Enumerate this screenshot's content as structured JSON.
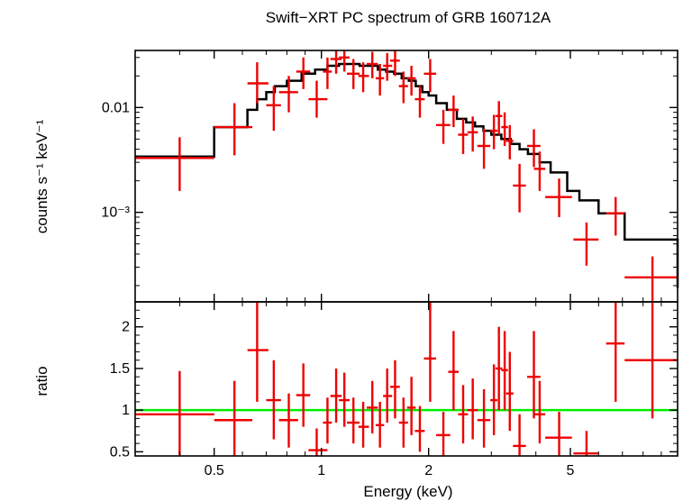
{
  "chart_data": {
    "type": "scatter",
    "title": "Swift−XRT PC spectrum of GRB 160712A",
    "xlabel": "Energy (keV)",
    "x_scale": "log",
    "xlim": [
      0.3,
      10
    ],
    "x_ticks": [
      {
        "value": 0.5,
        "label": "0.5"
      },
      {
        "value": 1,
        "label": "1"
      },
      {
        "value": 2,
        "label": "2"
      },
      {
        "value": 5,
        "label": "5"
      }
    ],
    "panels": [
      {
        "name": "spectrum",
        "ylabel": "counts s⁻¹ keV⁻¹",
        "y_scale": "log",
        "ylim": [
          0.00014,
          0.035
        ],
        "y_ticks": [
          {
            "value": 0.01,
            "label": "0.01"
          },
          {
            "value": 0.001,
            "label": "10⁻³"
          }
        ],
        "data_color": "#ee0000",
        "model_color": "#000000",
        "data": [
          {
            "x": 0.4,
            "xlo": 0.3,
            "xhi": 0.5,
            "y": 0.0033,
            "ylo": 0.0016,
            "yhi": 0.0052
          },
          {
            "x": 0.57,
            "xlo": 0.5,
            "xhi": 0.64,
            "y": 0.0065,
            "ylo": 0.0035,
            "yhi": 0.011
          },
          {
            "x": 0.66,
            "xlo": 0.62,
            "xhi": 0.71,
            "y": 0.017,
            "ylo": 0.011,
            "yhi": 0.027
          },
          {
            "x": 0.735,
            "xlo": 0.7,
            "xhi": 0.77,
            "y": 0.0105,
            "ylo": 0.006,
            "yhi": 0.016
          },
          {
            "x": 0.81,
            "xlo": 0.76,
            "xhi": 0.86,
            "y": 0.014,
            "ylo": 0.009,
            "yhi": 0.02
          },
          {
            "x": 0.89,
            "xlo": 0.85,
            "xhi": 0.93,
            "y": 0.022,
            "ylo": 0.015,
            "yhi": 0.03
          },
          {
            "x": 0.97,
            "xlo": 0.92,
            "xhi": 1.04,
            "y": 0.012,
            "ylo": 0.008,
            "yhi": 0.018
          },
          {
            "x": 1.04,
            "xlo": 1.01,
            "xhi": 1.07,
            "y": 0.022,
            "ylo": 0.015,
            "yhi": 0.03
          },
          {
            "x": 1.1,
            "xlo": 1.06,
            "xhi": 1.14,
            "y": 0.029,
            "ylo": 0.021,
            "yhi": 0.035
          },
          {
            "x": 1.16,
            "xlo": 1.12,
            "xhi": 1.2,
            "y": 0.03,
            "ylo": 0.022,
            "yhi": 0.035
          },
          {
            "x": 1.23,
            "xlo": 1.18,
            "xhi": 1.28,
            "y": 0.021,
            "ylo": 0.015,
            "yhi": 0.029
          },
          {
            "x": 1.31,
            "xlo": 1.27,
            "xhi": 1.36,
            "y": 0.02,
            "ylo": 0.014,
            "yhi": 0.027
          },
          {
            "x": 1.39,
            "xlo": 1.34,
            "xhi": 1.44,
            "y": 0.026,
            "ylo": 0.019,
            "yhi": 0.034
          },
          {
            "x": 1.46,
            "xlo": 1.42,
            "xhi": 1.5,
            "y": 0.019,
            "ylo": 0.013,
            "yhi": 0.026
          },
          {
            "x": 1.53,
            "xlo": 1.49,
            "xhi": 1.58,
            "y": 0.025,
            "ylo": 0.018,
            "yhi": 0.033
          },
          {
            "x": 1.61,
            "xlo": 1.56,
            "xhi": 1.66,
            "y": 0.028,
            "ylo": 0.02,
            "yhi": 0.035
          },
          {
            "x": 1.7,
            "xlo": 1.65,
            "xhi": 1.75,
            "y": 0.016,
            "ylo": 0.011,
            "yhi": 0.022
          },
          {
            "x": 1.79,
            "xlo": 1.74,
            "xhi": 1.84,
            "y": 0.019,
            "ylo": 0.013,
            "yhi": 0.025
          },
          {
            "x": 1.89,
            "xlo": 1.83,
            "xhi": 1.95,
            "y": 0.012,
            "ylo": 0.008,
            "yhi": 0.016
          },
          {
            "x": 2.02,
            "xlo": 1.94,
            "xhi": 2.1,
            "y": 0.021,
            "ylo": 0.014,
            "yhi": 0.029
          },
          {
            "x": 2.2,
            "xlo": 2.1,
            "xhi": 2.3,
            "y": 0.0068,
            "ylo": 0.0045,
            "yhi": 0.0095
          },
          {
            "x": 2.35,
            "xlo": 2.27,
            "xhi": 2.43,
            "y": 0.0095,
            "ylo": 0.0065,
            "yhi": 0.013
          },
          {
            "x": 2.5,
            "xlo": 2.42,
            "xhi": 2.58,
            "y": 0.0055,
            "ylo": 0.0036,
            "yhi": 0.0078
          },
          {
            "x": 2.66,
            "xlo": 2.57,
            "xhi": 2.75,
            "y": 0.0058,
            "ylo": 0.0038,
            "yhi": 0.0082
          },
          {
            "x": 2.86,
            "xlo": 2.74,
            "xhi": 2.98,
            "y": 0.0043,
            "ylo": 0.0026,
            "yhi": 0.0063
          },
          {
            "x": 3.05,
            "xlo": 2.98,
            "xhi": 3.12,
            "y": 0.006,
            "ylo": 0.004,
            "yhi": 0.0085
          },
          {
            "x": 3.15,
            "xlo": 3.08,
            "xhi": 3.22,
            "y": 0.0083,
            "ylo": 0.0055,
            "yhi": 0.0115
          },
          {
            "x": 3.27,
            "xlo": 3.2,
            "xhi": 3.34,
            "y": 0.0065,
            "ylo": 0.0043,
            "yhi": 0.009
          },
          {
            "x": 3.38,
            "xlo": 3.3,
            "xhi": 3.46,
            "y": 0.0048,
            "ylo": 0.0032,
            "yhi": 0.0068
          },
          {
            "x": 3.6,
            "xlo": 3.45,
            "xhi": 3.75,
            "y": 0.0018,
            "ylo": 0.001,
            "yhi": 0.0029
          },
          {
            "x": 3.95,
            "xlo": 3.78,
            "xhi": 4.12,
            "y": 0.0043,
            "ylo": 0.0027,
            "yhi": 0.0062
          },
          {
            "x": 4.1,
            "xlo": 3.95,
            "xhi": 4.25,
            "y": 0.0026,
            "ylo": 0.0016,
            "yhi": 0.0038
          },
          {
            "x": 4.65,
            "xlo": 4.25,
            "xhi": 5.05,
            "y": 0.0014,
            "ylo": 0.0009,
            "yhi": 0.0021
          },
          {
            "x": 5.55,
            "xlo": 5.1,
            "xhi": 6.0,
            "y": 0.00055,
            "ylo": 0.00031,
            "yhi": 0.0008
          },
          {
            "x": 6.7,
            "xlo": 6.3,
            "xhi": 7.1,
            "y": 0.00098,
            "ylo": 0.0006,
            "yhi": 0.0014
          },
          {
            "x": 8.5,
            "xlo": 7.1,
            "xhi": 10.0,
            "y": 0.00024,
            "ylo": 0.00014,
            "yhi": 0.00038
          }
        ],
        "model_step": {
          "edges": [
            0.3,
            0.5,
            0.62,
            0.66,
            0.7,
            0.74,
            0.8,
            0.88,
            0.96,
            1.04,
            1.12,
            1.2,
            1.28,
            1.36,
            1.44,
            1.52,
            1.6,
            1.68,
            1.76,
            1.84,
            1.92,
            2.0,
            2.1,
            2.25,
            2.4,
            2.55,
            2.7,
            2.85,
            3.0,
            3.2,
            3.4,
            3.6,
            3.8,
            4.1,
            4.4,
            4.9,
            5.3,
            6.0,
            7.1,
            10.0
          ],
          "values": [
            0.0034,
            0.0065,
            0.0095,
            0.012,
            0.014,
            0.016,
            0.018,
            0.021,
            0.023,
            0.025,
            0.026,
            0.026,
            0.025,
            0.025,
            0.023,
            0.022,
            0.021,
            0.019,
            0.018,
            0.016,
            0.014,
            0.013,
            0.011,
            0.0095,
            0.0078,
            0.0072,
            0.0066,
            0.006,
            0.0055,
            0.005,
            0.0045,
            0.004,
            0.0036,
            0.003,
            0.0024,
            0.0016,
            0.0013,
            0.00098,
            0.00055,
            0.00019
          ]
        }
      },
      {
        "name": "ratio",
        "ylabel": "ratio",
        "y_scale": "linear",
        "ylim": [
          0.45,
          2.3
        ],
        "y_ticks": [
          {
            "value": 0.5,
            "label": "0.5"
          },
          {
            "value": 1,
            "label": "1"
          },
          {
            "value": 1.5,
            "label": "1.5"
          },
          {
            "value": 2,
            "label": "2"
          }
        ],
        "reference_line": {
          "value": 1.0,
          "color": "#00ee00"
        },
        "data_color": "#ee0000",
        "data": [
          {
            "x": 0.4,
            "xlo": 0.3,
            "xhi": 0.5,
            "y": 0.95,
            "ylo": 0.45,
            "yhi": 1.47
          },
          {
            "x": 0.57,
            "xlo": 0.5,
            "xhi": 0.64,
            "y": 0.88,
            "ylo": 0.45,
            "yhi": 1.35
          },
          {
            "x": 0.66,
            "xlo": 0.62,
            "xhi": 0.71,
            "y": 1.72,
            "ylo": 1.1,
            "yhi": 2.3
          },
          {
            "x": 0.735,
            "xlo": 0.7,
            "xhi": 0.77,
            "y": 1.12,
            "ylo": 0.65,
            "yhi": 1.6
          },
          {
            "x": 0.81,
            "xlo": 0.76,
            "xhi": 0.86,
            "y": 0.88,
            "ylo": 0.55,
            "yhi": 1.2
          },
          {
            "x": 0.89,
            "xlo": 0.85,
            "xhi": 0.93,
            "y": 1.18,
            "ylo": 0.8,
            "yhi": 1.56
          },
          {
            "x": 0.97,
            "xlo": 0.92,
            "xhi": 1.04,
            "y": 0.52,
            "ylo": 0.45,
            "yhi": 0.78
          },
          {
            "x": 1.04,
            "xlo": 1.01,
            "xhi": 1.07,
            "y": 0.85,
            "ylo": 0.6,
            "yhi": 1.15
          },
          {
            "x": 1.1,
            "xlo": 1.06,
            "xhi": 1.14,
            "y": 1.17,
            "ylo": 0.85,
            "yhi": 1.5
          },
          {
            "x": 1.16,
            "xlo": 1.12,
            "xhi": 1.2,
            "y": 1.12,
            "ylo": 0.8,
            "yhi": 1.45
          },
          {
            "x": 1.23,
            "xlo": 1.18,
            "xhi": 1.28,
            "y": 0.85,
            "ylo": 0.6,
            "yhi": 1.15
          },
          {
            "x": 1.31,
            "xlo": 1.27,
            "xhi": 1.36,
            "y": 0.8,
            "ylo": 0.55,
            "yhi": 1.1
          },
          {
            "x": 1.39,
            "xlo": 1.34,
            "xhi": 1.44,
            "y": 1.03,
            "ylo": 0.72,
            "yhi": 1.35
          },
          {
            "x": 1.46,
            "xlo": 1.42,
            "xhi": 1.5,
            "y": 0.82,
            "ylo": 0.55,
            "yhi": 1.1
          },
          {
            "x": 1.53,
            "xlo": 1.49,
            "xhi": 1.58,
            "y": 1.17,
            "ylo": 0.85,
            "yhi": 1.5
          },
          {
            "x": 1.61,
            "xlo": 1.56,
            "xhi": 1.66,
            "y": 1.28,
            "ylo": 0.9,
            "yhi": 1.6
          },
          {
            "x": 1.7,
            "xlo": 1.65,
            "xhi": 1.75,
            "y": 0.85,
            "ylo": 0.55,
            "yhi": 1.15
          },
          {
            "x": 1.79,
            "xlo": 1.74,
            "xhi": 1.84,
            "y": 1.03,
            "ylo": 0.7,
            "yhi": 1.4
          },
          {
            "x": 1.89,
            "xlo": 1.83,
            "xhi": 1.95,
            "y": 0.75,
            "ylo": 0.5,
            "yhi": 1.05
          },
          {
            "x": 2.02,
            "xlo": 1.94,
            "xhi": 2.1,
            "y": 1.62,
            "ylo": 1.1,
            "yhi": 2.3
          },
          {
            "x": 2.2,
            "xlo": 2.1,
            "xhi": 2.3,
            "y": 0.7,
            "ylo": 0.45,
            "yhi": 0.98
          },
          {
            "x": 2.35,
            "xlo": 2.27,
            "xhi": 2.43,
            "y": 1.46,
            "ylo": 1.0,
            "yhi": 1.95
          },
          {
            "x": 2.5,
            "xlo": 2.42,
            "xhi": 2.58,
            "y": 0.95,
            "ylo": 0.6,
            "yhi": 1.3
          },
          {
            "x": 2.66,
            "xlo": 2.57,
            "xhi": 2.75,
            "y": 1.0,
            "ylo": 0.65,
            "yhi": 1.38
          },
          {
            "x": 2.86,
            "xlo": 2.74,
            "xhi": 2.98,
            "y": 0.88,
            "ylo": 0.55,
            "yhi": 1.25
          },
          {
            "x": 3.05,
            "xlo": 2.98,
            "xhi": 3.12,
            "y": 1.12,
            "ylo": 0.7,
            "yhi": 1.55
          },
          {
            "x": 3.15,
            "xlo": 3.08,
            "xhi": 3.22,
            "y": 1.5,
            "ylo": 1.0,
            "yhi": 2.0
          },
          {
            "x": 3.27,
            "xlo": 3.2,
            "xhi": 3.34,
            "y": 1.48,
            "ylo": 1.0,
            "yhi": 1.95
          },
          {
            "x": 3.38,
            "xlo": 3.3,
            "xhi": 3.46,
            "y": 1.2,
            "ylo": 0.75,
            "yhi": 1.7
          },
          {
            "x": 3.6,
            "xlo": 3.45,
            "xhi": 3.75,
            "y": 0.57,
            "ylo": 0.45,
            "yhi": 0.95
          },
          {
            "x": 3.95,
            "xlo": 3.78,
            "xhi": 4.12,
            "y": 1.4,
            "ylo": 0.9,
            "yhi": 1.95
          },
          {
            "x": 4.1,
            "xlo": 3.95,
            "xhi": 4.25,
            "y": 0.95,
            "ylo": 0.6,
            "yhi": 1.35
          },
          {
            "x": 4.65,
            "xlo": 4.25,
            "xhi": 5.05,
            "y": 0.67,
            "ylo": 0.45,
            "yhi": 0.98
          },
          {
            "x": 5.55,
            "xlo": 5.1,
            "xhi": 6.0,
            "y": 0.48,
            "ylo": 0.45,
            "yhi": 0.75
          },
          {
            "x": 6.7,
            "xlo": 6.3,
            "xhi": 7.1,
            "y": 1.8,
            "ylo": 1.1,
            "yhi": 2.3
          },
          {
            "x": 8.5,
            "xlo": 7.1,
            "xhi": 10.0,
            "y": 1.6,
            "ylo": 0.9,
            "yhi": 2.3
          }
        ]
      }
    ]
  }
}
